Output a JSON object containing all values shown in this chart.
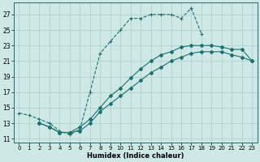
{
  "xlabel": "Humidex (Indice chaleur)",
  "background_color": "#cde8e5",
  "grid_color": "#aacfcc",
  "line_color": "#1e7070",
  "xlim": [
    -0.5,
    23.5
  ],
  "ylim": [
    10.5,
    28.5
  ],
  "xticks": [
    0,
    1,
    2,
    3,
    4,
    5,
    6,
    7,
    8,
    9,
    10,
    11,
    12,
    13,
    14,
    15,
    16,
    17,
    18,
    19,
    20,
    21,
    22,
    23
  ],
  "yticks": [
    11,
    13,
    15,
    17,
    19,
    21,
    23,
    25,
    27
  ],
  "line1_x": [
    0,
    1,
    2,
    3,
    4,
    5,
    6,
    7,
    8,
    9,
    10,
    11,
    12,
    13,
    14,
    15,
    16,
    17,
    18
  ],
  "line1_y": [
    14.3,
    14.0,
    13.5,
    13.0,
    12.0,
    11.5,
    12.2,
    17.0,
    22.0,
    23.5,
    25.0,
    26.5,
    26.5,
    27.0,
    27.0,
    27.0,
    26.5,
    27.8,
    24.5
  ],
  "line2_x": [
    2,
    3,
    4,
    5,
    6,
    7,
    8,
    9,
    10,
    11,
    12,
    13,
    14,
    15,
    16,
    17,
    18,
    19,
    20,
    21,
    22,
    23
  ],
  "line2_y": [
    13.0,
    12.5,
    11.8,
    11.8,
    12.0,
    13.0,
    14.5,
    15.5,
    16.5,
    17.5,
    18.5,
    19.5,
    20.2,
    21.0,
    21.5,
    22.0,
    22.2,
    22.2,
    22.2,
    21.8,
    21.5,
    21.0
  ],
  "line3_x": [
    2,
    3,
    4,
    5,
    6,
    7,
    8,
    9,
    10,
    11,
    12,
    13,
    14,
    15,
    16,
    17,
    18,
    19,
    20,
    21,
    22,
    23
  ],
  "line3_y": [
    13.0,
    12.5,
    11.8,
    11.8,
    12.5,
    13.5,
    15.0,
    16.5,
    17.5,
    18.8,
    20.0,
    21.0,
    21.8,
    22.2,
    22.8,
    23.0,
    23.0,
    23.0,
    22.8,
    22.5,
    22.5,
    21.0
  ]
}
